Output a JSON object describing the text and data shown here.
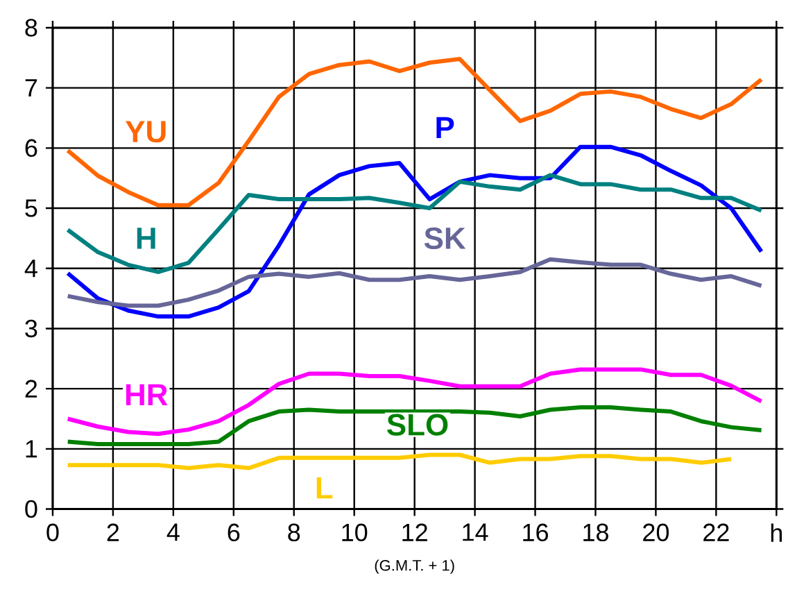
{
  "chart_data": {
    "type": "line",
    "xlabel": "(G.M.T. + 1)",
    "x": [
      0.5,
      1.5,
      2.5,
      3.5,
      4.5,
      5.5,
      6.5,
      7.5,
      8.5,
      9.5,
      10.5,
      11.5,
      12.5,
      13.5,
      14.5,
      15.5,
      16.5,
      17.5,
      18.5,
      19.5,
      20.5,
      21.5,
      22.5,
      23.5
    ],
    "series": [
      {
        "name": "YU",
        "color": "#ff6600",
        "values": [
          5.96,
          5.54,
          5.27,
          5.05,
          5.05,
          5.42,
          6.12,
          6.85,
          7.23,
          7.38,
          7.44,
          7.28,
          7.42,
          7.48,
          6.96,
          6.45,
          6.62,
          6.9,
          6.94,
          6.85,
          6.65,
          6.5,
          6.73,
          7.14
        ]
      },
      {
        "name": "P",
        "color": "#0000ff",
        "values": [
          3.92,
          3.5,
          3.3,
          3.2,
          3.2,
          3.35,
          3.62,
          4.38,
          5.23,
          5.55,
          5.7,
          5.75,
          5.15,
          5.44,
          5.55,
          5.5,
          5.5,
          6.02,
          6.02,
          5.88,
          5.62,
          5.38,
          5.0,
          4.28
        ]
      },
      {
        "name": "H",
        "color": "#008080",
        "values": [
          4.64,
          4.27,
          4.06,
          3.94,
          4.09,
          4.65,
          5.22,
          5.15,
          5.15,
          5.15,
          5.17,
          5.09,
          5.0,
          5.44,
          5.36,
          5.31,
          5.55,
          5.4,
          5.4,
          5.31,
          5.31,
          5.17,
          5.17,
          4.96
        ]
      },
      {
        "name": "SK",
        "color": "#666699",
        "values": [
          3.54,
          3.44,
          3.38,
          3.38,
          3.48,
          3.63,
          3.86,
          3.91,
          3.86,
          3.92,
          3.81,
          3.81,
          3.87,
          3.81,
          3.87,
          3.94,
          4.15,
          4.1,
          4.06,
          4.06,
          3.91,
          3.81,
          3.87,
          3.71
        ]
      },
      {
        "name": "HR",
        "color": "#ff00ff",
        "values": [
          1.5,
          1.37,
          1.28,
          1.25,
          1.32,
          1.46,
          1.73,
          2.08,
          2.25,
          2.25,
          2.21,
          2.21,
          2.13,
          2.04,
          2.04,
          2.04,
          2.25,
          2.32,
          2.32,
          2.32,
          2.23,
          2.23,
          2.05,
          1.79
        ]
      },
      {
        "name": "SLO",
        "color": "#008000",
        "values": [
          1.12,
          1.08,
          1.08,
          1.08,
          1.08,
          1.12,
          1.46,
          1.62,
          1.65,
          1.62,
          1.62,
          1.62,
          1.62,
          1.62,
          1.6,
          1.54,
          1.65,
          1.69,
          1.69,
          1.65,
          1.62,
          1.46,
          1.36,
          1.31
        ]
      },
      {
        "name": "L",
        "color": "#ffcc00",
        "values": [
          0.73,
          0.73,
          0.73,
          0.73,
          0.68,
          0.73,
          0.68,
          0.85,
          0.85,
          0.85,
          0.85,
          0.85,
          0.9,
          0.9,
          0.77,
          0.83,
          0.83,
          0.88,
          0.88,
          0.83,
          0.83,
          0.77,
          0.83,
          null
        ]
      }
    ],
    "xlim": [
      0,
      24
    ],
    "ylim": [
      0,
      8
    ],
    "xticks": [
      0,
      2,
      4,
      6,
      8,
      10,
      12,
      14,
      16,
      18,
      20,
      22,
      {
        "value": 24,
        "label": "h"
      }
    ],
    "yticks": [
      0,
      1,
      2,
      3,
      4,
      5,
      6,
      7,
      8
    ],
    "grid": true,
    "marker": "none",
    "line_style": "solid"
  }
}
